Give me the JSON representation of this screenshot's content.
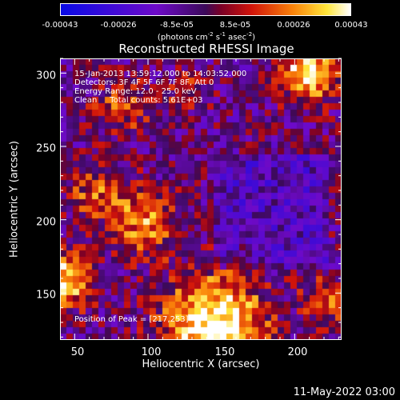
{
  "colorbar": {
    "ticks": [
      "-0.00043",
      "-0.00026",
      "-8.5e-05",
      "8.5e-05",
      "0.00026",
      "0.00043"
    ],
    "units": "(photons cm-2 s-1 asec-2)",
    "min": -0.00043,
    "max": 0.00043
  },
  "chart_data": {
    "type": "heatmap",
    "title": "Reconstructed RHESSI Image",
    "xlabel": "Heliocentric X (arcsec)",
    "ylabel": "Heliocentric Y (arcsec)",
    "xlim": [
      40,
      232
    ],
    "ylim": [
      118,
      310
    ],
    "xticks": [
      "50",
      "100",
      "150",
      "200"
    ],
    "yticks": [
      "150",
      "200",
      "250",
      "300"
    ],
    "colormap": "blue-purple-red-yellow-white",
    "annotations": {
      "line1": "15-Jan-2013 13:59:12.000 to 14:03:52.000",
      "line2": "Detectors: 3F 4F 5F 6F 7F 8F, Att 0",
      "line3": "Energy Range: 12.0 - 25.0 keV",
      "line4": "Clean     Total counts: 5.61E+03",
      "peak": "Position of Peak = [217,253]"
    }
  },
  "footer": {
    "timestamp": "11-May-2022 03:00"
  }
}
